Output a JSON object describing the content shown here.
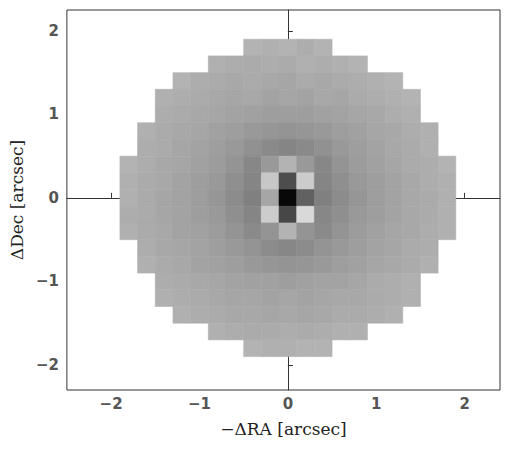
{
  "chart_data": {
    "type": "heatmap",
    "x_label": "−ΔRA [arcsec]",
    "y_label": "ΔDec [arcsec]",
    "xlim": [
      -2.5,
      2.4
    ],
    "ylim": [
      -2.3,
      2.25
    ],
    "xticks": [
      {
        "value": -2,
        "label": "−2"
      },
      {
        "value": -1,
        "label": "−1"
      },
      0,
      1,
      2
    ],
    "yticks": [
      {
        "value": -2,
        "label": "−2"
      },
      {
        "value": -1,
        "label": "−1"
      },
      0,
      1,
      2
    ],
    "grid": false,
    "x": [
      -1.8,
      -1.6,
      -1.4,
      -1.2,
      -1.0,
      -0.8,
      -0.6,
      -0.4,
      -0.2,
      0,
      0.2,
      0.4,
      0.6,
      0.8,
      1.0,
      1.2,
      1.4,
      1.6,
      1.8
    ],
    "y": [
      1.8,
      1.6,
      1.4,
      1.2,
      1.0,
      0.8,
      0.6,
      0.4,
      0.2,
      0,
      -0.2,
      -0.4,
      -0.6,
      -0.8,
      -1.0,
      -1.2,
      -1.4,
      -1.6,
      -1.8
    ],
    "z": [
      [
        null,
        null,
        null,
        null,
        null,
        null,
        null,
        0.3,
        0.31,
        0.3,
        0.32,
        0.3,
        null,
        null,
        null,
        null,
        null,
        null,
        null
      ],
      [
        null,
        null,
        null,
        null,
        null,
        0.31,
        0.32,
        0.33,
        0.32,
        0.33,
        0.31,
        0.32,
        0.31,
        0.3,
        null,
        null,
        null,
        null,
        null
      ],
      [
        null,
        null,
        null,
        0.3,
        0.32,
        0.33,
        0.34,
        0.33,
        0.34,
        0.35,
        0.33,
        0.34,
        0.33,
        0.32,
        0.31,
        0.3,
        null,
        null,
        null
      ],
      [
        null,
        null,
        0.31,
        0.32,
        0.33,
        0.34,
        0.35,
        0.34,
        0.36,
        0.35,
        0.36,
        0.34,
        0.35,
        0.33,
        0.32,
        0.31,
        0.3,
        null,
        null
      ],
      [
        null,
        null,
        0.32,
        0.33,
        0.34,
        0.35,
        0.36,
        0.37,
        0.38,
        0.38,
        0.38,
        0.37,
        0.36,
        0.35,
        0.34,
        0.32,
        0.31,
        null,
        null
      ],
      [
        null,
        0.31,
        0.33,
        0.34,
        0.35,
        0.37,
        0.38,
        0.4,
        0.41,
        0.42,
        0.41,
        0.4,
        0.38,
        0.37,
        0.35,
        0.34,
        0.32,
        0.31,
        null
      ],
      [
        null,
        0.32,
        0.33,
        0.35,
        0.36,
        0.38,
        0.4,
        0.43,
        0.46,
        0.48,
        0.46,
        0.43,
        0.4,
        0.38,
        0.36,
        0.34,
        0.33,
        0.31,
        null
      ],
      [
        0.3,
        0.32,
        0.34,
        0.35,
        0.37,
        0.39,
        0.42,
        0.47,
        0.4,
        0.3,
        0.4,
        0.47,
        0.42,
        0.39,
        0.37,
        0.35,
        0.33,
        0.32,
        0.3
      ],
      [
        0.31,
        0.33,
        0.34,
        0.36,
        0.38,
        0.4,
        0.44,
        0.48,
        0.22,
        0.7,
        0.2,
        0.48,
        0.44,
        0.4,
        0.38,
        0.36,
        0.34,
        0.32,
        0.31
      ],
      [
        0.31,
        0.33,
        0.35,
        0.36,
        0.38,
        0.41,
        0.45,
        0.5,
        0.35,
        0.97,
        0.62,
        0.5,
        0.45,
        0.41,
        0.38,
        0.36,
        0.34,
        0.33,
        0.31
      ],
      [
        0.32,
        0.33,
        0.35,
        0.36,
        0.38,
        0.4,
        0.44,
        0.48,
        0.2,
        0.72,
        0.15,
        0.47,
        0.44,
        0.4,
        0.38,
        0.36,
        0.34,
        0.33,
        0.31
      ],
      [
        0.31,
        0.33,
        0.34,
        0.36,
        0.37,
        0.39,
        0.42,
        0.46,
        0.42,
        0.3,
        0.42,
        0.46,
        0.42,
        0.39,
        0.37,
        0.35,
        0.34,
        0.32,
        0.31
      ],
      [
        null,
        0.32,
        0.34,
        0.35,
        0.36,
        0.38,
        0.4,
        0.42,
        0.45,
        0.47,
        0.45,
        0.42,
        0.4,
        0.38,
        0.36,
        0.35,
        0.33,
        0.32,
        null
      ],
      [
        null,
        0.31,
        0.33,
        0.34,
        0.36,
        0.37,
        0.38,
        0.4,
        0.41,
        0.42,
        0.41,
        0.4,
        0.38,
        0.37,
        0.35,
        0.34,
        0.33,
        0.31,
        null
      ],
      [
        null,
        null,
        0.32,
        0.33,
        0.34,
        0.35,
        0.36,
        0.37,
        0.37,
        0.38,
        0.37,
        0.36,
        0.36,
        0.35,
        0.33,
        0.32,
        0.31,
        null,
        null
      ],
      [
        null,
        null,
        0.31,
        0.32,
        0.33,
        0.34,
        0.35,
        0.35,
        0.36,
        0.35,
        0.36,
        0.35,
        0.34,
        0.34,
        0.33,
        0.32,
        0.31,
        null,
        null
      ],
      [
        null,
        null,
        null,
        0.31,
        0.32,
        0.33,
        0.34,
        0.34,
        0.35,
        0.34,
        0.35,
        0.34,
        0.33,
        0.33,
        0.32,
        0.31,
        null,
        null,
        null
      ],
      [
        null,
        null,
        null,
        null,
        null,
        0.31,
        0.32,
        0.33,
        0.33,
        0.32,
        0.33,
        0.32,
        0.31,
        0.31,
        null,
        null,
        null,
        null,
        null
      ],
      [
        null,
        null,
        null,
        null,
        null,
        null,
        null,
        0.3,
        0.31,
        0.31,
        0.3,
        0.3,
        null,
        null,
        null,
        null,
        null,
        null,
        null
      ]
    ]
  }
}
